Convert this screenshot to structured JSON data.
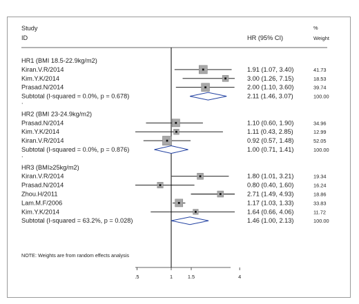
{
  "chart_data": {
    "type": "forest",
    "header": {
      "study_line1": "Study",
      "study_line2": "ID",
      "hr_label": "HR (95% CI)",
      "weight_line1": "%",
      "weight_line2": "Weight"
    },
    "x_axis": {
      "scale": "log",
      "ticks": [
        ".5",
        "1",
        "1.5",
        "4"
      ],
      "tick_values": [
        0.5,
        1,
        1.5,
        4
      ],
      "null_line": 1
    },
    "groups": [
      {
        "title": "HR1 (BMI 18.5-22.9kg/m2)",
        "studies": [
          {
            "name": "Kiran.V.R/2014",
            "hr": 1.91,
            "lo": 1.07,
            "hi": 3.4,
            "ci_text": "1.91 (1.07, 3.40)",
            "weight": 41.73,
            "weight_text": "41.73"
          },
          {
            "name": "Kim.Y.K/2014",
            "hr": 3.0,
            "lo": 1.26,
            "hi": 7.15,
            "ci_text": "3.00 (1.26, 7.15)",
            "weight": 18.53,
            "weight_text": "18.53"
          },
          {
            "name": "Prasad.N/2014",
            "hr": 2.0,
            "lo": 1.1,
            "hi": 3.6,
            "ci_text": "2.00 (1.10, 3.60)",
            "weight": 39.74,
            "weight_text": "39.74"
          }
        ],
        "subtotal": {
          "label": "Subtotal  (I-squared = 0.0%, p = 0.678)",
          "hr": 2.11,
          "lo": 1.46,
          "hi": 3.07,
          "ci_text": "2.11 (1.46, 3.07)",
          "weight_text": "100.00"
        }
      },
      {
        "title": "HR2 (BMI 23-24.9kg/m2)",
        "studies": [
          {
            "name": "Prasad.N/2014",
            "hr": 1.1,
            "lo": 0.6,
            "hi": 1.9,
            "ci_text": "1.10 (0.60, 1.90)",
            "weight": 34.96,
            "weight_text": "34.96"
          },
          {
            "name": "Kim.Y.K/2014",
            "hr": 1.11,
            "lo": 0.43,
            "hi": 2.85,
            "ci_text": "1.11 (0.43, 2.85)",
            "weight": 12.99,
            "weight_text": "12.99"
          },
          {
            "name": "Kiran.V.R/2014",
            "hr": 0.92,
            "lo": 0.57,
            "hi": 1.48,
            "ci_text": "0.92 (0.57, 1.48)",
            "weight": 52.05,
            "weight_text": "52.05"
          }
        ],
        "subtotal": {
          "label": "Subtotal  (I-squared = 0.0%, p = 0.876)",
          "hr": 1.0,
          "lo": 0.71,
          "hi": 1.41,
          "ci_text": "1.00 (0.71, 1.41)",
          "weight_text": "100.00"
        }
      },
      {
        "title": "HR3 (BMI≥25kg/m2)",
        "studies": [
          {
            "name": "Kiran.V.R/2014",
            "hr": 1.8,
            "lo": 1.01,
            "hi": 3.21,
            "ci_text": "1.80 (1.01, 3.21)",
            "weight": 19.34,
            "weight_text": "19.34"
          },
          {
            "name": "Prasad.N/2014",
            "hr": 0.8,
            "lo": 0.4,
            "hi": 1.6,
            "ci_text": "0.80 (0.40, 1.60)",
            "weight": 16.24,
            "weight_text": "16.24"
          },
          {
            "name": "Zhou.H/2011",
            "hr": 2.71,
            "lo": 1.49,
            "hi": 4.93,
            "ci_text": "2.71 (1.49, 4.93)",
            "weight": 18.86,
            "weight_text": "18.86"
          },
          {
            "name": "Lam.M.F/2006",
            "hr": 1.17,
            "lo": 1.03,
            "hi": 1.33,
            "ci_text": "1.17 (1.03, 1.33)",
            "weight": 33.83,
            "weight_text": "33.83"
          },
          {
            "name": "Kim.Y.K/2014",
            "hr": 1.64,
            "lo": 0.66,
            "hi": 4.06,
            "ci_text": "1.64 (0.66, 4.06)",
            "weight": 11.72,
            "weight_text": "11.72"
          }
        ],
        "subtotal": {
          "label": "Subtotal  (I-squared = 63.2%, p = 0.028)",
          "hr": 1.46,
          "lo": 1.0,
          "hi": 2.13,
          "ci_text": "1.46 (1.00, 2.13)",
          "weight_text": "100.00"
        }
      }
    ],
    "group_separator": ".",
    "note": "NOTE: Weights are from random effects analysis"
  }
}
